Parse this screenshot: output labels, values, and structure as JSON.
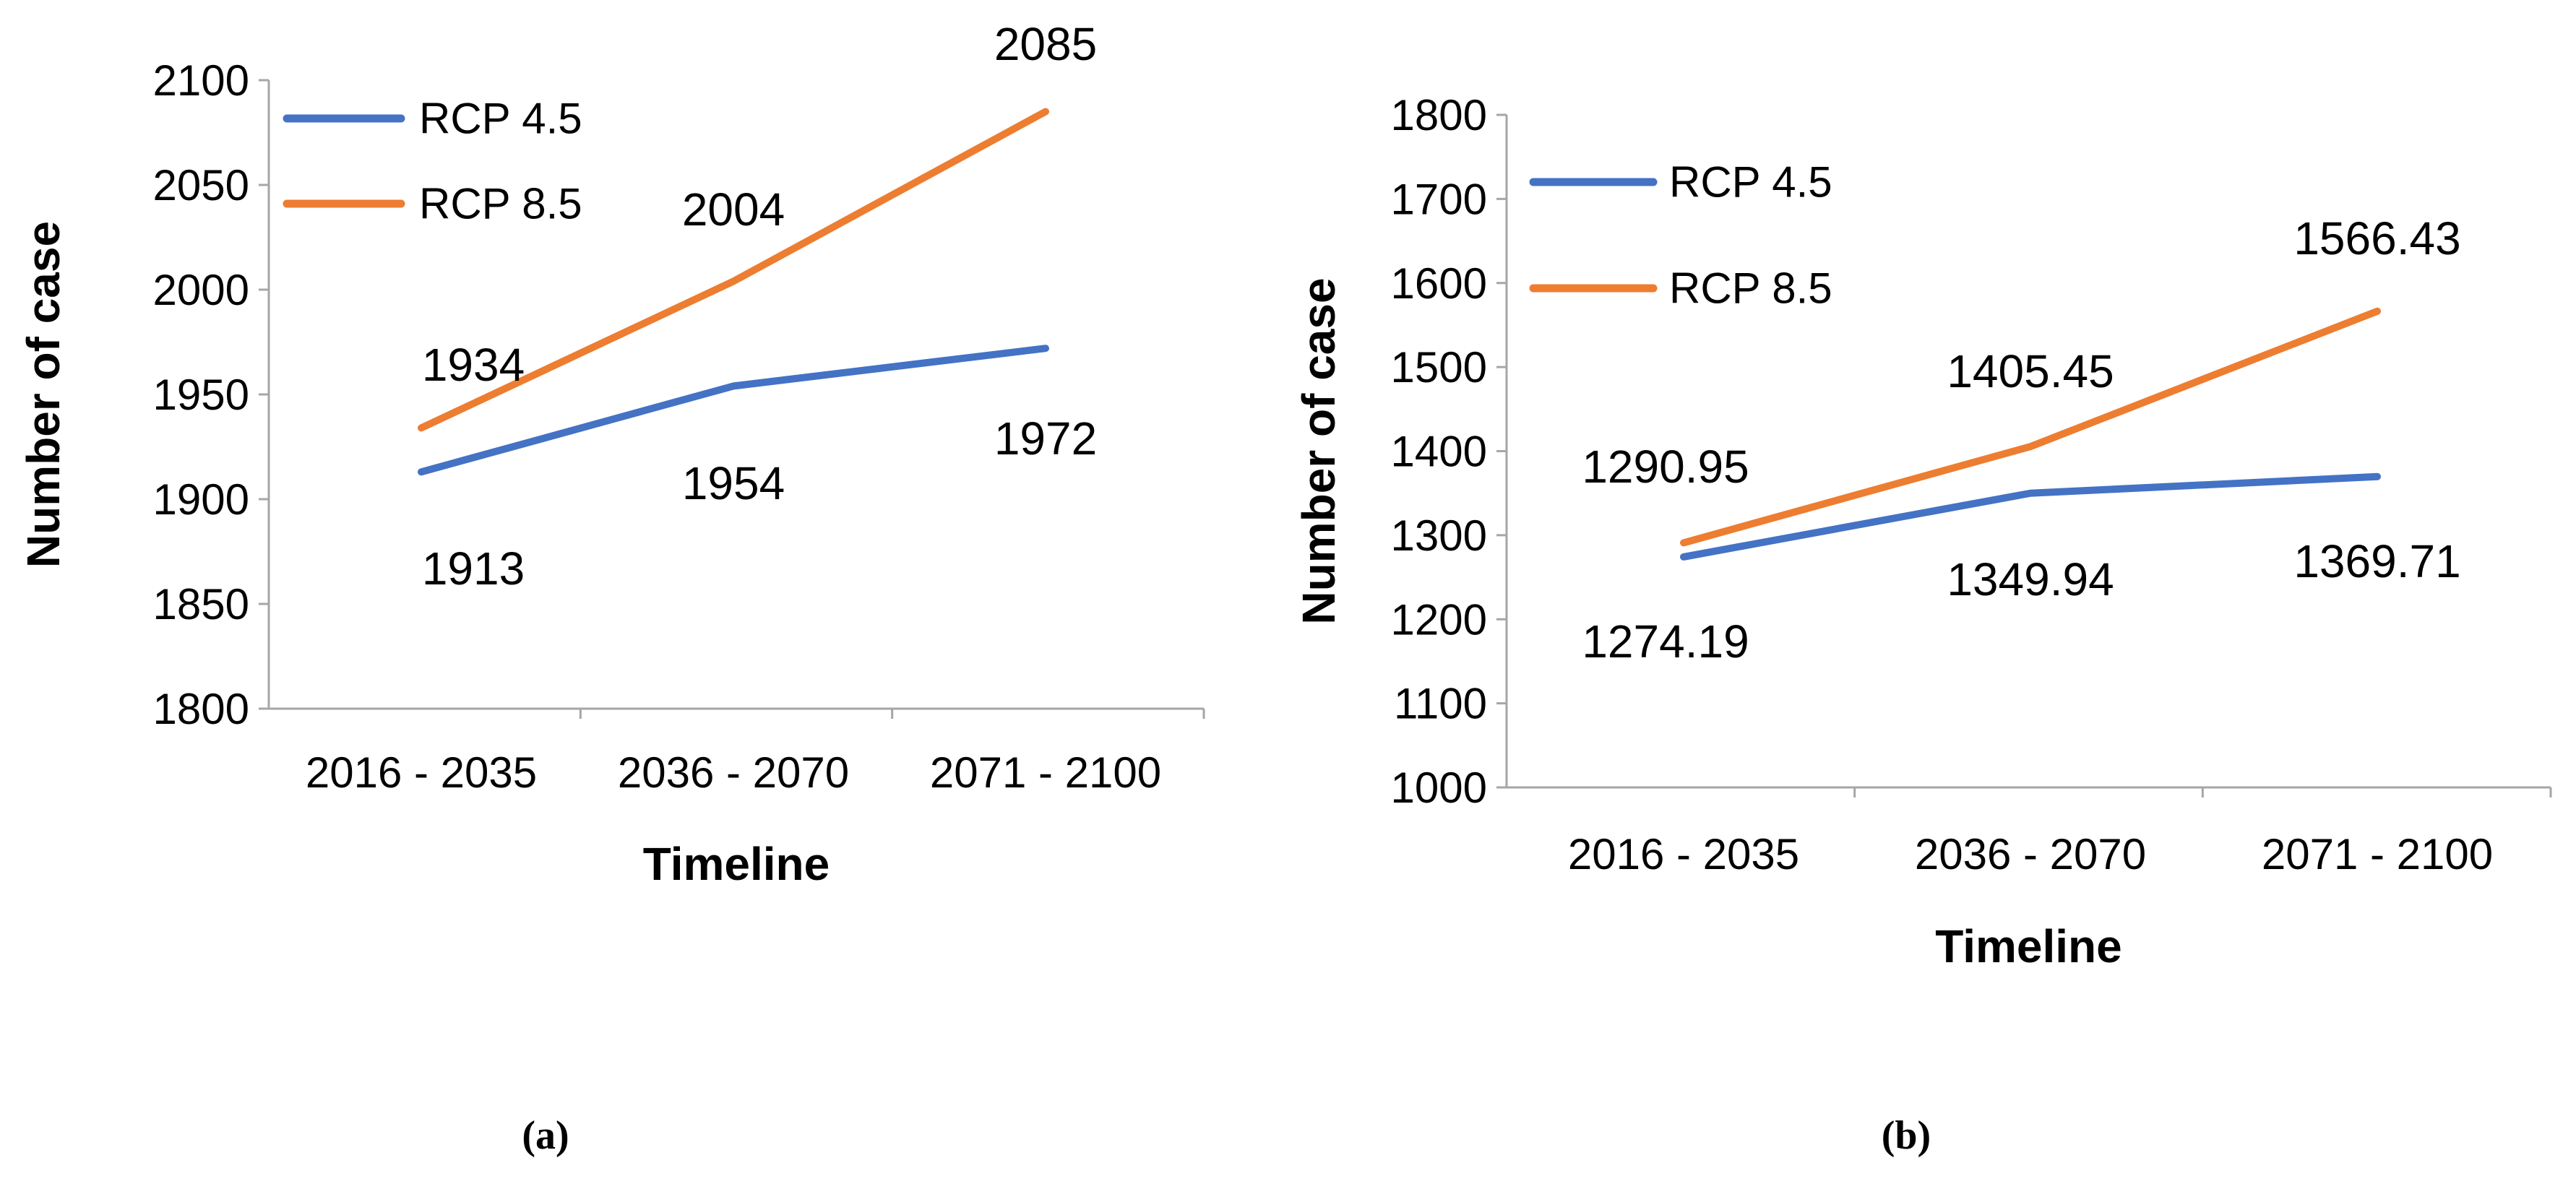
{
  "chart_data": [
    {
      "type": "line",
      "categories": [
        "2016 - 2035",
        "2036 - 2070",
        "2071 - 2100"
      ],
      "series": [
        {
          "name": "RCP 4.5",
          "color": "#4472C4",
          "values": [
            1913,
            1954,
            1972
          ]
        },
        {
          "name": "RCP 8.5",
          "color": "#ED7D31",
          "values": [
            1934,
            2004,
            2085
          ]
        }
      ],
      "xlabel": "Timeline",
      "ylabel": "Number of case",
      "ylim": [
        1800,
        2100
      ],
      "yticks": [
        1800,
        1850,
        1900,
        1950,
        2000,
        2050,
        2100
      ],
      "legend": "top-left",
      "grid": false,
      "caption": "(a)"
    },
    {
      "type": "line",
      "categories": [
        "2016 - 2035",
        "2036 - 2070",
        "2071 - 2100"
      ],
      "series": [
        {
          "name": "RCP 4.5",
          "color": "#4472C4",
          "values": [
            1274.19,
            1349.94,
            1369.71
          ]
        },
        {
          "name": "RCP 8.5",
          "color": "#ED7D31",
          "values": [
            1290.95,
            1405.45,
            1566.43
          ]
        }
      ],
      "xlabel": "Timeline",
      "ylabel": "Number of case",
      "ylim": [
        1000,
        1800
      ],
      "yticks": [
        1000,
        1100,
        1200,
        1300,
        1400,
        1500,
        1600,
        1700,
        1800
      ],
      "legend": "top-left",
      "grid": false,
      "caption": "(b)"
    }
  ]
}
